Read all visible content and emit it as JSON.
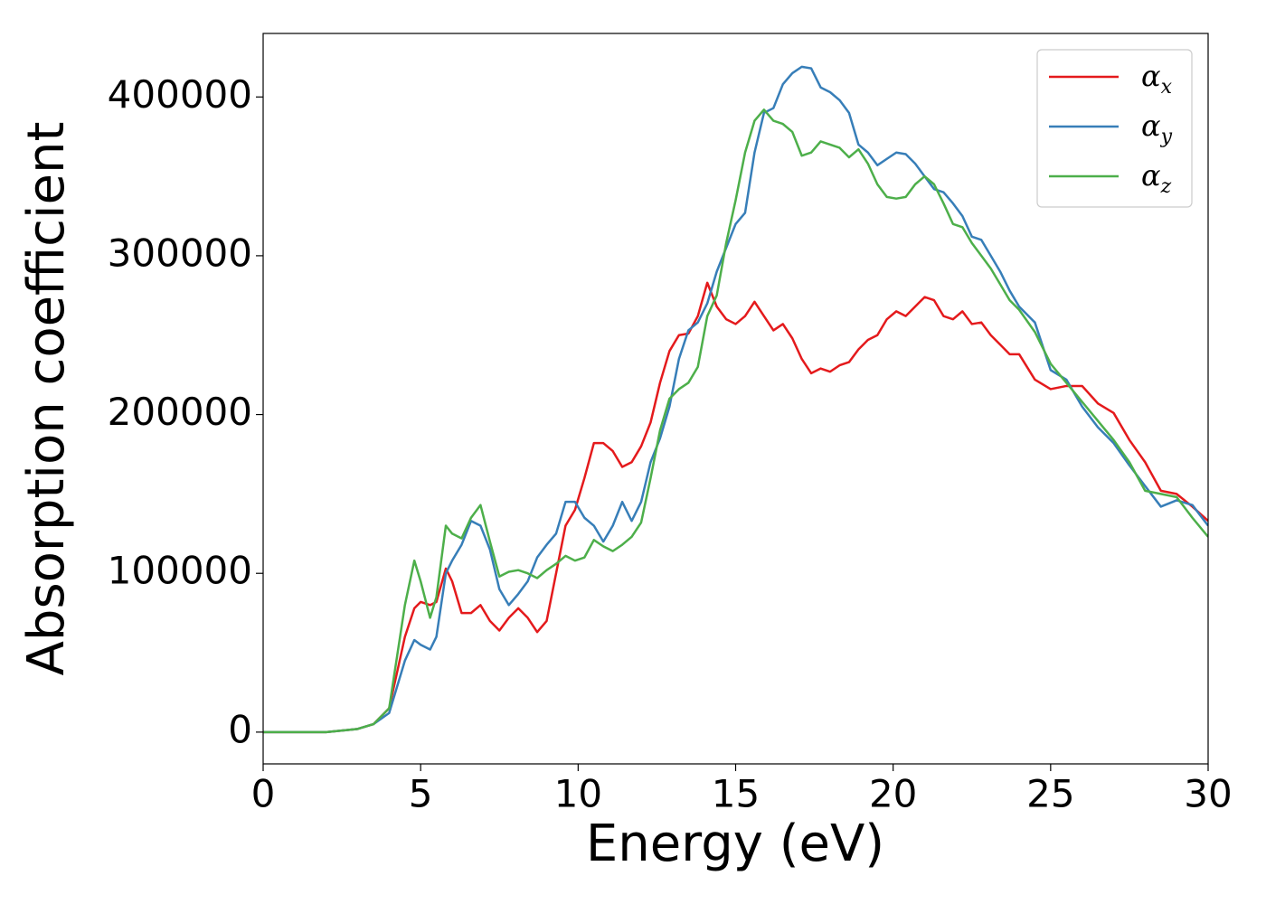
{
  "chart_data": {
    "type": "line",
    "xlabel": "Energy (eV)",
    "ylabel": "Absorption coefficient",
    "x": [
      0,
      1,
      2,
      3,
      3.5,
      4,
      4.5,
      4.8,
      5,
      5.3,
      5.5,
      5.8,
      6,
      6.3,
      6.6,
      6.9,
      7.2,
      7.5,
      7.8,
      8.1,
      8.4,
      8.7,
      9,
      9.3,
      9.6,
      9.9,
      10.2,
      10.5,
      10.8,
      11.1,
      11.4,
      11.7,
      12,
      12.3,
      12.6,
      12.9,
      13.2,
      13.5,
      13.8,
      14.1,
      14.4,
      14.7,
      15,
      15.3,
      15.6,
      15.9,
      16.2,
      16.5,
      16.8,
      17.1,
      17.4,
      17.7,
      18,
      18.3,
      18.6,
      18.9,
      19.2,
      19.5,
      19.8,
      20.1,
      20.4,
      20.7,
      21,
      21.3,
      21.6,
      21.9,
      22.2,
      22.5,
      22.8,
      23.1,
      23.4,
      23.7,
      24,
      24.5,
      25,
      25.5,
      26,
      26.5,
      27,
      27.5,
      28,
      28.5,
      29,
      29.5,
      30
    ],
    "series": [
      {
        "name": "αx",
        "color": "#e41a1c",
        "values": [
          0,
          0,
          0,
          2000,
          5000,
          15000,
          60000,
          78000,
          82000,
          80000,
          82000,
          103000,
          95000,
          75000,
          75000,
          80000,
          70000,
          64000,
          72000,
          78000,
          72000,
          63000,
          70000,
          100000,
          130000,
          140000,
          160000,
          182000,
          182000,
          177000,
          167000,
          170000,
          180000,
          195000,
          220000,
          240000,
          250000,
          251000,
          262000,
          283000,
          268000,
          260000,
          257000,
          262000,
          271000,
          262000,
          253000,
          257000,
          248000,
          235000,
          226000,
          229000,
          227000,
          231000,
          233000,
          241000,
          247000,
          250000,
          260000,
          265000,
          262000,
          268000,
          274000,
          272000,
          262000,
          260000,
          265000,
          257000,
          258000,
          250000,
          244000,
          238000,
          238000,
          222000,
          216000,
          218000,
          218000,
          207000,
          201000,
          184000,
          170000,
          152000,
          150000,
          142000,
          133000
        ]
      },
      {
        "name": "αy",
        "color": "#377eb8",
        "values": [
          0,
          0,
          0,
          2000,
          5000,
          12000,
          45000,
          58000,
          55000,
          52000,
          60000,
          100000,
          108000,
          118000,
          133000,
          130000,
          115000,
          90000,
          80000,
          87000,
          95000,
          110000,
          118000,
          125000,
          145000,
          145000,
          135000,
          130000,
          120000,
          130000,
          145000,
          133000,
          145000,
          170000,
          185000,
          205000,
          235000,
          253000,
          258000,
          270000,
          290000,
          305000,
          320000,
          327000,
          365000,
          390000,
          393000,
          408000,
          415000,
          419000,
          418000,
          406000,
          403000,
          398000,
          390000,
          370000,
          365000,
          357000,
          361000,
          365000,
          364000,
          358000,
          350000,
          342000,
          340000,
          333000,
          325000,
          312000,
          310000,
          300000,
          290000,
          278000,
          268000,
          258000,
          228000,
          222000,
          205000,
          192000,
          182000,
          168000,
          155000,
          142000,
          146000,
          143000,
          130000
        ]
      },
      {
        "name": "αz",
        "color": "#4daf4a",
        "values": [
          0,
          0,
          0,
          2000,
          5000,
          15000,
          80000,
          108000,
          95000,
          72000,
          85000,
          130000,
          125000,
          122000,
          135000,
          143000,
          120000,
          98000,
          101000,
          102000,
          100000,
          97000,
          102000,
          106000,
          111000,
          108000,
          110000,
          121000,
          117000,
          114000,
          118000,
          123000,
          132000,
          160000,
          190000,
          210000,
          216000,
          220000,
          230000,
          262000,
          275000,
          308000,
          335000,
          365000,
          385000,
          392000,
          385000,
          383000,
          378000,
          363000,
          365000,
          372000,
          370000,
          368000,
          362000,
          367000,
          358000,
          345000,
          337000,
          336000,
          337000,
          345000,
          350000,
          345000,
          333000,
          320000,
          318000,
          308000,
          300000,
          292000,
          282000,
          272000,
          266000,
          252000,
          232000,
          220000,
          208000,
          196000,
          184000,
          170000,
          152000,
          150000,
          148000,
          135000,
          123000
        ]
      }
    ],
    "xlim": [
      0,
      30
    ],
    "xticks": [
      0,
      5,
      10,
      15,
      20,
      25,
      30
    ],
    "ylim": [
      -20000,
      440000
    ],
    "yticks": [
      0,
      100000,
      200000,
      300000,
      400000
    ],
    "grid": false,
    "legend": "upper right"
  }
}
